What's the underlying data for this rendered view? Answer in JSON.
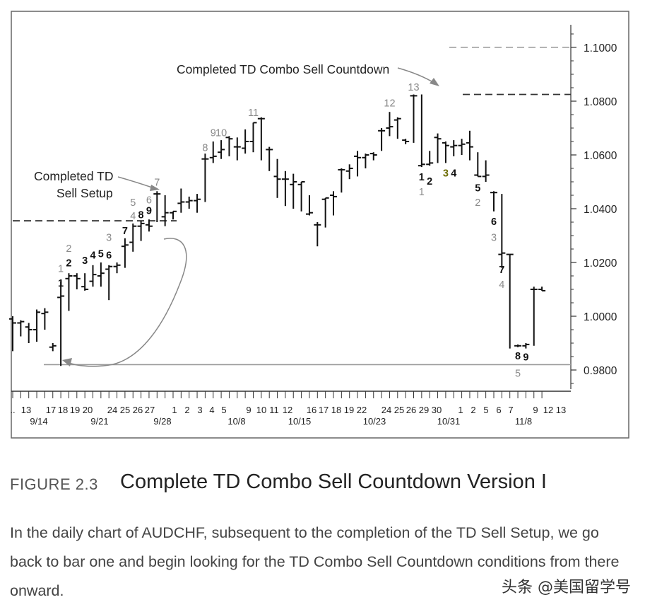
{
  "figure": {
    "label": "FIGURE 2.3",
    "title": "Complete TD Combo Sell Countdown Version I",
    "caption": "In the daily chart of AUDCHF, subsequent to the completion of the TD Sell Setup, we go back to bar one and begin looking for the TD Combo Sell Countdown conditions from there onward."
  },
  "watermark": "头条 @美国留学号",
  "chart_data": {
    "type": "ohlc-bar",
    "ylim": [
      0.97,
      1.11
    ],
    "y_ticks": [
      "1.1000",
      "1.0800",
      "1.0600",
      "1.0400",
      "1.0200",
      "1.0000",
      "0.9800"
    ],
    "day_labels": [
      "..",
      "13",
      "17",
      "18",
      "19",
      "20",
      "24",
      "25",
      "26",
      "27",
      "1",
      "2",
      "3",
      "4",
      "5",
      "9",
      "10",
      "11",
      "12",
      "16",
      "17",
      "18",
      "19",
      "22",
      "24",
      "25",
      "26",
      "29",
      "30",
      "1",
      "2",
      "5",
      "6",
      "7",
      "9",
      "12",
      "13"
    ],
    "date_labels": [
      "9/14",
      "9/21",
      "9/28",
      "10/8",
      "10/15",
      "10/23",
      "10/31",
      "11/8"
    ],
    "bars": [
      {
        "o": 0.999,
        "h": 1.0,
        "l": 0.987,
        "c": 0.9975
      },
      {
        "o": 0.9975,
        "h": 0.9985,
        "l": 0.9925,
        "c": 0.998
      },
      {
        "o": 0.996,
        "h": 0.9975,
        "l": 0.99,
        "c": 0.995
      },
      {
        "o": 0.995,
        "h": 1.0025,
        "l": 0.9905,
        "c": 1.0015
      },
      {
        "o": 1.001,
        "h": 1.003,
        "l": 0.995,
        "c": 1.0015
      },
      {
        "o": 0.9885,
        "h": 0.99,
        "l": 0.987,
        "c": 0.989
      },
      {
        "o": 1.007,
        "h": 1.013,
        "l": 0.9815,
        "c": 1.0075
      },
      {
        "o": 1.014,
        "h": 1.016,
        "l": 1.002,
        "c": 1.015
      },
      {
        "o": 1.015,
        "h": 1.016,
        "l": 1.01,
        "c": 1.014
      },
      {
        "o": 1.011,
        "h": 1.016,
        "l": 1.0095,
        "c": 1.01
      },
      {
        "o": 1.013,
        "h": 1.019,
        "l": 1.011,
        "c": 1.0155
      },
      {
        "o": 1.015,
        "h": 1.02,
        "l": 1.011,
        "c": 1.016
      },
      {
        "o": 1.0175,
        "h": 1.019,
        "l": 1.006,
        "c": 1.0185
      },
      {
        "o": 1.0185,
        "h": 1.02,
        "l": 1.016,
        "c": 1.019
      },
      {
        "o": 1.026,
        "h": 1.029,
        "l": 1.018,
        "c": 1.0265
      },
      {
        "o": 1.0275,
        "h": 1.0345,
        "l": 1.024,
        "c": 1.0335
      },
      {
        "o": 1.0335,
        "h": 1.0355,
        "l": 1.028,
        "c": 1.0345
      },
      {
        "o": 1.034,
        "h": 1.036,
        "l": 1.0315,
        "c": 1.0335
      },
      {
        "o": 1.0455,
        "h": 1.0465,
        "l": 1.035,
        "c": 1.0455
      },
      {
        "o": 1.037,
        "h": 1.045,
        "l": 1.0335,
        "c": 1.0385
      },
      {
        "o": 1.0385,
        "h": 1.039,
        "l": 1.036,
        "c": 1.039
      },
      {
        "o": 1.042,
        "h": 1.0475,
        "l": 1.0385,
        "c": 1.0425
      },
      {
        "o": 1.0425,
        "h": 1.0445,
        "l": 1.04,
        "c": 1.043
      },
      {
        "o": 1.043,
        "h": 1.0455,
        "l": 1.0385,
        "c": 1.0435
      },
      {
        "o": 1.0585,
        "h": 1.0605,
        "l": 1.0425,
        "c": 1.0585
      },
      {
        "o": 1.059,
        "h": 1.065,
        "l": 1.057,
        "c": 1.0595
      },
      {
        "o": 1.061,
        "h": 1.0655,
        "l": 1.0585,
        "c": 1.062
      },
      {
        "o": 1.0665,
        "h": 1.067,
        "l": 1.0595,
        "c": 1.066
      },
      {
        "o": 1.063,
        "h": 1.0665,
        "l": 1.058,
        "c": 1.063
      },
      {
        "o": 1.0625,
        "h": 1.0695,
        "l": 1.0605,
        "c": 1.065
      },
      {
        "o": 1.065,
        "h": 1.072,
        "l": 1.061,
        "c": 1.072
      },
      {
        "o": 1.0735,
        "h": 1.074,
        "l": 1.058,
        "c": 1.0735
      },
      {
        "o": 1.062,
        "h": 1.063,
        "l": 1.054,
        "c": 1.062
      },
      {
        "o": 1.052,
        "h": 1.0585,
        "l": 1.044,
        "c": 1.051
      },
      {
        "o": 1.051,
        "h": 1.054,
        "l": 1.041,
        "c": 1.051
      },
      {
        "o": 1.049,
        "h": 1.053,
        "l": 1.04,
        "c": 1.05
      },
      {
        "o": 1.049,
        "h": 1.05,
        "l": 1.039,
        "c": 1.05
      },
      {
        "o": 1.038,
        "h": 1.045,
        "l": 1.0375,
        "c": 1.0385
      },
      {
        "o": 1.034,
        "h": 1.035,
        "l": 1.026,
        "c": 1.034
      },
      {
        "o": 1.0435,
        "h": 1.044,
        "l": 1.033,
        "c": 1.044
      },
      {
        "o": 1.045,
        "h": 1.0465,
        "l": 1.0375,
        "c": 1.0445
      },
      {
        "o": 1.0545,
        "h": 1.055,
        "l": 1.046,
        "c": 1.0545
      },
      {
        "o": 1.054,
        "h": 1.0565,
        "l": 1.051,
        "c": 1.055
      },
      {
        "o": 1.0595,
        "h": 1.0615,
        "l": 1.052,
        "c": 1.059
      },
      {
        "o": 1.059,
        "h": 1.0605,
        "l": 1.055,
        "c": 1.06
      },
      {
        "o": 1.0605,
        "h": 1.061,
        "l": 1.058,
        "c": 1.06
      },
      {
        "o": 1.069,
        "h": 1.07,
        "l": 1.0615,
        "c": 1.069
      },
      {
        "o": 1.07,
        "h": 1.076,
        "l": 1.067,
        "c": 1.0705
      },
      {
        "o": 1.073,
        "h": 1.074,
        "l": 1.066,
        "c": 1.0735
      },
      {
        "o": 1.0655,
        "h": 1.066,
        "l": 1.064,
        "c": 1.065
      },
      {
        "o": 1.082,
        "h": 1.0825,
        "l": 1.0645,
        "c": 1.082
      },
      {
        "o": 1.056,
        "h": 1.0825,
        "l": 1.0555,
        "c": 1.0565
      },
      {
        "o": 1.0565,
        "h": 1.0615,
        "l": 1.056,
        "c": 1.057
      },
      {
        "o": 1.0665,
        "h": 1.068,
        "l": 1.057,
        "c": 1.066
      },
      {
        "o": 1.0645,
        "h": 1.065,
        "l": 1.057,
        "c": 1.0635
      },
      {
        "o": 1.063,
        "h": 1.0655,
        "l": 1.0595,
        "c": 1.0635
      },
      {
        "o": 1.0635,
        "h": 1.066,
        "l": 1.06,
        "c": 1.064
      },
      {
        "o": 1.0645,
        "h": 1.069,
        "l": 1.058,
        "c": 1.063
      },
      {
        "o": 1.0525,
        "h": 1.061,
        "l": 1.052,
        "c": 1.052
      },
      {
        "o": 1.052,
        "h": 1.058,
        "l": 1.05,
        "c": 1.0525
      },
      {
        "o": 1.046,
        "h": 1.0465,
        "l": 1.039,
        "c": 1.046
      },
      {
        "o": 1.023,
        "h": 1.0455,
        "l": 1.018,
        "c": 1.0235
      },
      {
        "o": 1.023,
        "h": 1.023,
        "l": 0.988,
        "c": 1.023
      },
      {
        "o": 0.989,
        "h": 0.9895,
        "l": 0.9885,
        "c": 0.989
      },
      {
        "o": 0.989,
        "h": 0.99,
        "l": 0.988,
        "c": 0.9895
      },
      {
        "o": 1.01,
        "h": 1.011,
        "l": 0.989,
        "c": 1.01
      },
      {
        "o": 1.01,
        "h": 1.011,
        "l": 1.0095,
        "c": 1.0095
      }
    ],
    "reference_lines": [
      {
        "y": 1.1,
        "style": "dashed-gray"
      },
      {
        "y": 1.0825,
        "style": "dashed-black"
      },
      {
        "y": 1.0355,
        "style": "dashed-black"
      },
      {
        "y": 0.982,
        "style": "solid-gray"
      }
    ],
    "bar_labels": [
      {
        "bar": 6,
        "text": "1",
        "level": 1.0165,
        "tone": "gray"
      },
      {
        "bar": 6,
        "text": "1",
        "level": 1.011,
        "tone": "black"
      },
      {
        "bar": 7,
        "text": "2",
        "level": 1.024,
        "tone": "gray"
      },
      {
        "bar": 7,
        "text": "2",
        "level": 1.0185,
        "tone": "black"
      },
      {
        "bar": 9,
        "text": "3",
        "level": 1.0195,
        "tone": "black"
      },
      {
        "bar": 10,
        "text": "4",
        "level": 1.0215,
        "tone": "black"
      },
      {
        "bar": 11,
        "text": "5",
        "level": 1.022,
        "tone": "black"
      },
      {
        "bar": 12,
        "text": "3",
        "level": 1.028,
        "tone": "gray"
      },
      {
        "bar": 12,
        "text": "6",
        "level": 1.0215,
        "tone": "black"
      },
      {
        "bar": 14,
        "text": "7",
        "level": 1.0305,
        "tone": "black"
      },
      {
        "bar": 15,
        "text": "5",
        "level": 1.041,
        "tone": "gray"
      },
      {
        "bar": 15,
        "text": "4",
        "level": 1.036,
        "tone": "gray"
      },
      {
        "bar": 16,
        "text": "8",
        "level": 1.0365,
        "tone": "black"
      },
      {
        "bar": 17,
        "text": "6",
        "level": 1.042,
        "tone": "gray"
      },
      {
        "bar": 17,
        "text": "9",
        "level": 1.038,
        "tone": "black"
      },
      {
        "bar": 18,
        "text": "7",
        "level": 1.0485,
        "tone": "gray"
      },
      {
        "bar": 24,
        "text": "8",
        "level": 1.0615,
        "tone": "gray"
      },
      {
        "bar": 25,
        "text": "9",
        "level": 1.067,
        "tone": "gray"
      },
      {
        "bar": 26,
        "text": "10",
        "level": 1.067,
        "tone": "gray"
      },
      {
        "bar": 30,
        "text": "11",
        "level": 1.0745,
        "tone": "gray"
      },
      {
        "bar": 47,
        "text": "12",
        "level": 1.078,
        "tone": "gray"
      },
      {
        "bar": 50,
        "text": "13",
        "level": 1.084,
        "tone": "gray"
      },
      {
        "bar": 51,
        "text": "1",
        "level": 1.0505,
        "tone": "black"
      },
      {
        "bar": 51,
        "text": "1",
        "level": 1.045,
        "tone": "gray"
      },
      {
        "bar": 52,
        "text": "2",
        "level": 1.049,
        "tone": "black"
      },
      {
        "bar": 54,
        "text": "3",
        "level": 1.052,
        "tone": "olive"
      },
      {
        "bar": 55,
        "text": "4",
        "level": 1.052,
        "tone": "black"
      },
      {
        "bar": 58,
        "text": "5",
        "level": 1.0465,
        "tone": "black"
      },
      {
        "bar": 58,
        "text": "2",
        "level": 1.041,
        "tone": "gray"
      },
      {
        "bar": 60,
        "text": "6",
        "level": 1.034,
        "tone": "black"
      },
      {
        "bar": 60,
        "text": "3",
        "level": 1.028,
        "tone": "gray"
      },
      {
        "bar": 61,
        "text": "7",
        "level": 1.016,
        "tone": "black"
      },
      {
        "bar": 61,
        "text": "4",
        "level": 1.0105,
        "tone": "gray"
      },
      {
        "bar": 63,
        "text": "8",
        "level": 0.984,
        "tone": "black"
      },
      {
        "bar": 64,
        "text": "9",
        "level": 0.9835,
        "tone": "black"
      },
      {
        "bar": 63,
        "text": "5",
        "level": 0.9775,
        "tone": "gray"
      }
    ],
    "annotations": {
      "countdown": "Completed TD Combo Sell Countdown",
      "setup_line1": "Completed TD",
      "setup_line2": "Sell Setup"
    }
  }
}
